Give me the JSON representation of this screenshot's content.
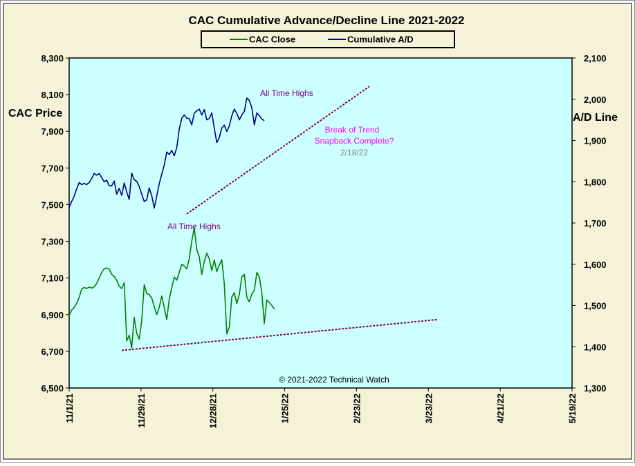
{
  "chart_data": {
    "type": "line",
    "title": "CAC Cumulative  Advance/Decline  Line 2021-2022",
    "ylabel_left": "CAC Price",
    "ylabel_right": "A/D Line",
    "legend": {
      "position": "top-center"
    },
    "grid": false,
    "colors": {
      "outer_bg": "#F5F2D8",
      "plot_bg": "#CCFFFF",
      "cac": "#008000",
      "ad": "#000080",
      "trend": "#800040",
      "annotation": "#800080",
      "break_text": "#FF00FF",
      "date_text": "#808080"
    },
    "ylim_left": [
      6500,
      8300
    ],
    "ylim_right": [
      1300,
      2100
    ],
    "left_ticks": [
      "8,300",
      "8,100",
      "7,900",
      "7,700",
      "7,500",
      "7,300",
      "7,100",
      "6,900",
      "6,700",
      "6,500"
    ],
    "right_ticks": [
      "2,100",
      "2,000",
      "1,900",
      "1,800",
      "1,700",
      "1,600",
      "1,500",
      "1,400",
      "1,300"
    ],
    "x_ticks": [
      "11/1/21",
      "11/29/21",
      "12/28/21",
      "1/25/22",
      "2/23/22",
      "3/23/22",
      "4/21/22",
      "5/19/22"
    ],
    "x_range_days": [
      0,
      201
    ],
    "series": [
      {
        "name": "CAC Close",
        "axis": "left",
        "points": [
          [
            0,
            6895
          ],
          [
            1,
            6925
          ],
          [
            2,
            6940
          ],
          [
            3,
            6962
          ],
          [
            4,
            6995
          ],
          [
            5,
            7040
          ],
          [
            6,
            7048
          ],
          [
            7,
            7043
          ],
          [
            8,
            7050
          ],
          [
            9,
            7045
          ],
          [
            10,
            7052
          ],
          [
            11,
            7070
          ],
          [
            12,
            7100
          ],
          [
            13,
            7130
          ],
          [
            14,
            7150
          ],
          [
            15,
            7155
          ],
          [
            16,
            7148
          ],
          [
            17,
            7120
          ],
          [
            18,
            7108
          ],
          [
            19,
            7088
          ],
          [
            20,
            7055
          ],
          [
            21,
            7042
          ],
          [
            22,
            7075
          ],
          [
            23,
            6756
          ],
          [
            24,
            6788
          ],
          [
            25,
            6718
          ],
          [
            26,
            6886
          ],
          [
            27,
            6796
          ],
          [
            28,
            6766
          ],
          [
            29,
            6868
          ],
          [
            30,
            7064
          ],
          [
            31,
            7015
          ],
          [
            32,
            7010
          ],
          [
            33,
            6990
          ],
          [
            34,
            6943
          ],
          [
            35,
            6900
          ],
          [
            36,
            6940
          ],
          [
            37,
            7002
          ],
          [
            38,
            6940
          ],
          [
            39,
            6873
          ],
          [
            40,
            6985
          ],
          [
            41,
            7046
          ],
          [
            42,
            7105
          ],
          [
            43,
            7088
          ],
          [
            44,
            7130
          ],
          [
            45,
            7175
          ],
          [
            46,
            7165
          ],
          [
            47,
            7150
          ],
          [
            48,
            7205
          ],
          [
            49,
            7300
          ],
          [
            50,
            7375
          ],
          [
            51,
            7255
          ],
          [
            52,
            7215
          ],
          [
            53,
            7120
          ],
          [
            54,
            7190
          ],
          [
            55,
            7235
          ],
          [
            56,
            7205
          ],
          [
            57,
            7140
          ],
          [
            58,
            7198
          ],
          [
            59,
            7135
          ],
          [
            60,
            7170
          ],
          [
            61,
            7200
          ],
          [
            62,
            7070
          ],
          [
            63,
            6795
          ],
          [
            64,
            6832
          ],
          [
            65,
            6995
          ],
          [
            66,
            7020
          ],
          [
            67,
            6960
          ],
          [
            68,
            7010
          ],
          [
            69,
            7105
          ],
          [
            70,
            7120
          ],
          [
            71,
            6995
          ],
          [
            72,
            6970
          ],
          [
            73,
            7012
          ],
          [
            74,
            7032
          ],
          [
            75,
            7130
          ],
          [
            76,
            7105
          ],
          [
            77,
            7020
          ],
          [
            78,
            6852
          ],
          [
            79,
            6980
          ],
          [
            80,
            6965
          ],
          [
            81,
            6950
          ],
          [
            82,
            6930
          ]
        ]
      },
      {
        "name": "Cumulative A/D",
        "axis": "right",
        "points": [
          [
            0,
            1738
          ],
          [
            1,
            1752
          ],
          [
            2,
            1765
          ],
          [
            3,
            1783
          ],
          [
            4,
            1798
          ],
          [
            5,
            1793
          ],
          [
            6,
            1796
          ],
          [
            7,
            1793
          ],
          [
            8,
            1798
          ],
          [
            9,
            1808
          ],
          [
            10,
            1820
          ],
          [
            11,
            1816
          ],
          [
            12,
            1820
          ],
          [
            13,
            1810
          ],
          [
            14,
            1800
          ],
          [
            15,
            1804
          ],
          [
            16,
            1790
          ],
          [
            17,
            1790
          ],
          [
            18,
            1802
          ],
          [
            19,
            1770
          ],
          [
            20,
            1784
          ],
          [
            21,
            1767
          ],
          [
            22,
            1797
          ],
          [
            23,
            1775
          ],
          [
            24,
            1757
          ],
          [
            25,
            1821
          ],
          [
            26,
            1805
          ],
          [
            27,
            1801
          ],
          [
            28,
            1788
          ],
          [
            29,
            1770
          ],
          [
            30,
            1752
          ],
          [
            31,
            1756
          ],
          [
            32,
            1785
          ],
          [
            33,
            1766
          ],
          [
            34,
            1736
          ],
          [
            35,
            1766
          ],
          [
            36,
            1795
          ],
          [
            37,
            1818
          ],
          [
            38,
            1840
          ],
          [
            39,
            1872
          ],
          [
            40,
            1866
          ],
          [
            41,
            1876
          ],
          [
            42,
            1863
          ],
          [
            43,
            1882
          ],
          [
            44,
            1927
          ],
          [
            45,
            1954
          ],
          [
            46,
            1962
          ],
          [
            47,
            1954
          ],
          [
            48,
            1953
          ],
          [
            49,
            1938
          ],
          [
            50,
            1966
          ],
          [
            51,
            1972
          ],
          [
            52,
            1976
          ],
          [
            53,
            1962
          ],
          [
            54,
            1975
          ],
          [
            55,
            1950
          ],
          [
            56,
            1953
          ],
          [
            57,
            1967
          ],
          [
            58,
            1930
          ],
          [
            59,
            1895
          ],
          [
            60,
            1907
          ],
          [
            61,
            1930
          ],
          [
            62,
            1937
          ],
          [
            63,
            1922
          ],
          [
            64,
            1935
          ],
          [
            65,
            1960
          ],
          [
            66,
            1976
          ],
          [
            67,
            1966
          ],
          [
            68,
            1950
          ],
          [
            69,
            1962
          ],
          [
            70,
            1970
          ],
          [
            71,
            2003
          ],
          [
            72,
            1997
          ],
          [
            73,
            1980
          ],
          [
            74,
            1938
          ],
          [
            75,
            1967
          ],
          [
            76,
            1960
          ],
          [
            77,
            1952
          ],
          [
            78,
            1948
          ]
        ]
      }
    ],
    "trendlines": [
      {
        "axis": "right",
        "from": [
          47,
          1722
        ],
        "to": [
          120,
          2031
        ]
      },
      {
        "axis": "left",
        "from": [
          21,
          6705
        ],
        "to": [
          147,
          6873
        ]
      }
    ],
    "annotations": {
      "ath_upper": "All Time Highs",
      "ath_lower": "All Time Highs",
      "break_line1": "Break of Trend",
      "break_line2": "Snapback Complete?",
      "date": "2/18/22",
      "copyright": "© 2021-2022  Technical  Watch"
    }
  }
}
